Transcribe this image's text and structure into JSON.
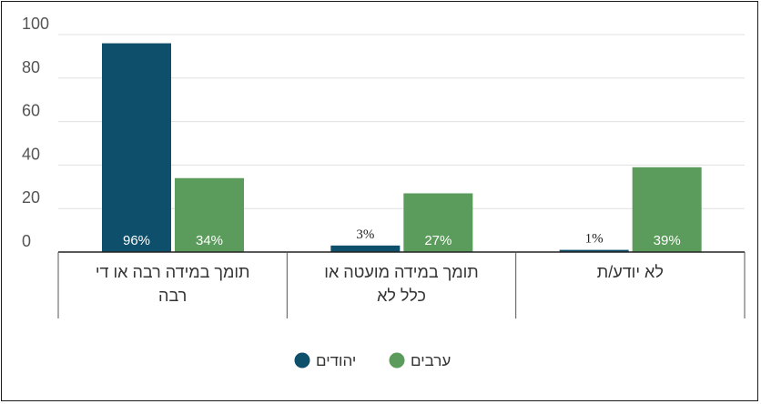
{
  "chart_data": {
    "type": "bar",
    "categories": [
      "תומך במידה רבה או די רבה",
      "תומך במידה מועטה או כלל לא",
      "לא יודע/ת"
    ],
    "category_lines": [
      [
        "תומך במידה רבה או די",
        "רבה"
      ],
      [
        "תומך במידה מועטה או",
        "כלל לא"
      ],
      [
        "לא יודע/ת"
      ]
    ],
    "series": [
      {
        "name": "יהודים",
        "values": [
          96,
          3,
          1
        ],
        "labels": [
          "96%",
          "3%",
          "1%"
        ],
        "color": "#0e4f6b"
      },
      {
        "name": "ערבים",
        "values": [
          34,
          27,
          39
        ],
        "labels": [
          "34%",
          "27%",
          "39%"
        ],
        "color": "#5b9b5b"
      }
    ],
    "ylim": [
      0,
      100
    ],
    "yticks": [
      "0",
      "20",
      "40",
      "60",
      "80",
      "100"
    ],
    "grid": true,
    "legend_position": "bottom-center"
  }
}
